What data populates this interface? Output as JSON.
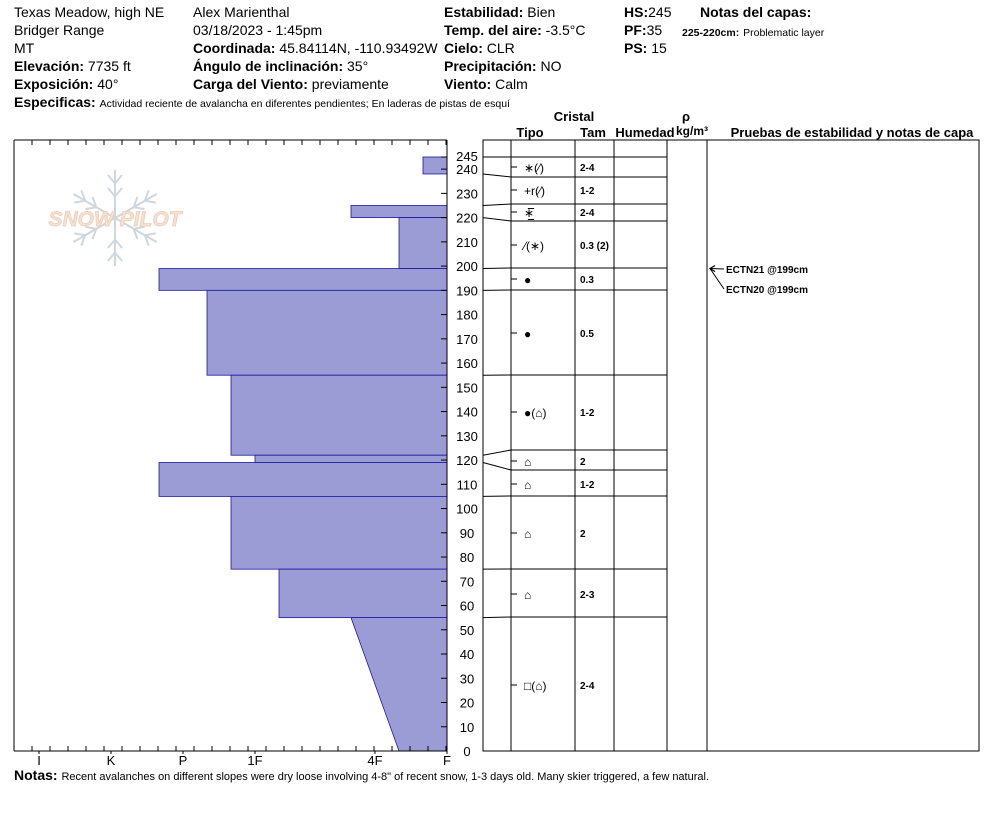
{
  "header": {
    "location": "Texas Meadow, high NE",
    "range": "Bridger Range",
    "state": "MT",
    "elevation_label": "Elevación:",
    "elevation_value": "7735 ft",
    "aspect_label": "Exposición:",
    "aspect_value": "40°",
    "specifics_label": "Especificas:",
    "specifics_value": "Actividad reciente de avalancha en diferentes pendientes;  En laderas de pistas de esquí",
    "observer": "Alex Marienthal",
    "datetime": "03/18/2023 - 1:45pm",
    "coord_label": "Coordinada:",
    "coord_value": "45.84114N, -110.93492W",
    "slope_label": "Ángulo de inclinación:",
    "slope_value": "35°",
    "wind_load_label": "Carga del Viento:",
    "wind_load_value": "previamente",
    "stability_label": "Estabilidad:",
    "stability_value": "Bien",
    "air_temp_label": "Temp. del aire:",
    "air_temp_value": "-3.5°C",
    "sky_label": "Cielo:",
    "sky_value": "CLR",
    "precip_label": "Precipitación:",
    "precip_value": "NO",
    "wind_label": "Viento:",
    "wind_value": "Calm",
    "hs_label": "HS:",
    "hs_value": "245",
    "pf_label": "PF:",
    "pf_value": "35",
    "ps_label": "PS:",
    "ps_value": "15",
    "layer_notes_label": "Notas del capas:",
    "layer_note_range": "225-220cm:",
    "layer_note_text": "Problematic layer"
  },
  "notes_label": "Notas:",
  "notes_text": "Recent avalanches on different slopes were dry loose involving 4-8\" of recent snow, 1-3 days old. Many skier triggered, a few natural.",
  "logo_text": "SNOW PILOT",
  "columns": {
    "cristal": "Cristal",
    "tipo": "Tipo",
    "tam": "Tam",
    "humedad": "Humedad",
    "rho": "ρ",
    "density_unit": "kg/m³",
    "tests_header": "Pruebas de estabilidad y notas de capa"
  },
  "colors": {
    "hardness_fill": "#9b9bd6",
    "hardness_stroke": "#1a1aa0"
  },
  "chart_data": {
    "type": "snow_profile",
    "total_depth_cm": 245,
    "depth_ticks": [
      0,
      10,
      20,
      30,
      40,
      50,
      60,
      70,
      80,
      90,
      100,
      110,
      120,
      130,
      140,
      150,
      160,
      170,
      180,
      190,
      200,
      210,
      220,
      230,
      240,
      245
    ],
    "hardness_scale": [
      "I",
      "K",
      "P",
      "1F",
      "4F",
      "F"
    ],
    "hardness_profile": [
      {
        "top": 245,
        "bottom": 238,
        "hardness": "F+"
      },
      {
        "top": 238,
        "bottom": 225,
        "hardness": "F-"
      },
      {
        "top": 225,
        "bottom": 220,
        "hardness": "4F+"
      },
      {
        "top": 220,
        "bottom": 199,
        "hardness": "4F-"
      },
      {
        "top": 199,
        "bottom": 190,
        "hardness": "P+"
      },
      {
        "top": 190,
        "bottom": 155,
        "hardness": "P-"
      },
      {
        "top": 155,
        "bottom": 122,
        "hardness": "1F+"
      },
      {
        "top": 122,
        "bottom": 119,
        "hardness": "1F"
      },
      {
        "top": 119,
        "bottom": 105,
        "hardness": "P+"
      },
      {
        "top": 105,
        "bottom": 75,
        "hardness": "1F+"
      },
      {
        "top": 75,
        "bottom": 55,
        "hardness": "1F-"
      },
      {
        "top": 55,
        "bottom": 0,
        "hardness_top": "4F+",
        "hardness_bottom": "4F-"
      }
    ],
    "layers": [
      {
        "top": 245,
        "bottom": 238,
        "tipo": "",
        "tam": ""
      },
      {
        "top": 238,
        "bottom": 225,
        "tipo": "∗(⁄)",
        "tam": "2-4"
      },
      {
        "top": 225,
        "bottom": 220,
        "tipo": "+r(⁄)",
        "tam": "1-2"
      },
      {
        "top": 220,
        "bottom": 199,
        "tipo": "∗̲̅",
        "tam": "2-4"
      },
      {
        "top": 199,
        "bottom": 190,
        "tipo": "⁄(∗)",
        "tam": "0.3 (2)"
      },
      {
        "top": 190,
        "bottom": 155,
        "tipo": "●",
        "tam": "0.3"
      },
      {
        "top": 155,
        "bottom": 122,
        "tipo": "●",
        "tam": "0.5"
      },
      {
        "top": 122,
        "bottom": 119,
        "tipo": "●(⌂)",
        "tam": "1-2"
      },
      {
        "top": 119,
        "bottom": 105,
        "tipo": "⌂",
        "tam": "2"
      },
      {
        "top": 105,
        "bottom": 75,
        "tipo": "⌂",
        "tam": "1-2"
      },
      {
        "top": 75,
        "bottom": 55,
        "tipo": "⌂",
        "tam": "2"
      },
      {
        "top": 55,
        "bottom": 0,
        "tipo": "⌂",
        "tam": "2-3"
      },
      {
        "top": 0,
        "bottom": 0,
        "tipo": "□(⌂)",
        "tam": "2-4"
      }
    ],
    "stability_tests": [
      {
        "label": "ECTN21 @199cm",
        "depth": 199
      },
      {
        "label": "ECTN20 @199cm",
        "depth": 199
      }
    ]
  }
}
